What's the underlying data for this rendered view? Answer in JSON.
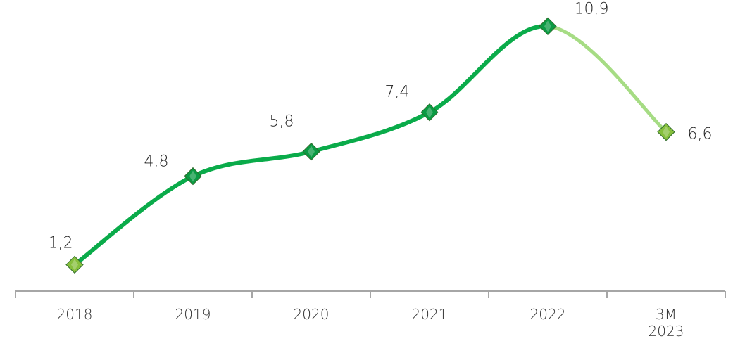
{
  "chart_data": {
    "type": "line",
    "categories": [
      "2018",
      "2019",
      "2020",
      "2021",
      "2022",
      "3M 2023"
    ],
    "category_lines": [
      [
        "2018"
      ],
      [
        "2019"
      ],
      [
        "2020"
      ],
      [
        "2021"
      ],
      [
        "2022"
      ],
      [
        "3M",
        "2023"
      ]
    ],
    "values": [
      1.2,
      4.8,
      5.8,
      7.4,
      10.9,
      6.6
    ],
    "data_labels": [
      "1,2",
      "4,8",
      "5,8",
      "7,4",
      "10,9",
      "6,6"
    ],
    "title": "",
    "xlabel": "",
    "ylabel": "",
    "grid": false,
    "legend": "none",
    "colors": {
      "line_main": "#0aab4a",
      "line_partial": "#a6dc84",
      "marker_main": "#0b9a43",
      "marker_partial": "#86bf3c",
      "axis": "#a6a6a6"
    }
  }
}
